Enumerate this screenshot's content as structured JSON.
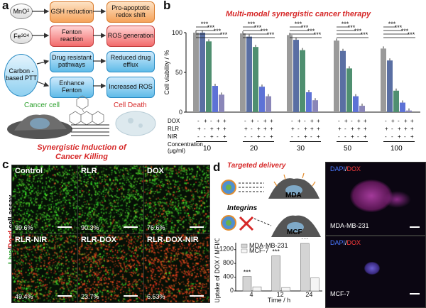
{
  "panel_a": {
    "letter": "a",
    "rows": [
      {
        "source": "MnO",
        "source_sub": "2",
        "mid": "GSH reduction",
        "right": "Pro-apoptotic redox shift"
      },
      {
        "source": "Fe",
        "source_sub": "3O4",
        "mid": "Fenton reaction",
        "right": "ROS generation"
      },
      {
        "source": "Carbon -based PTT",
        "source_sub": "",
        "mid": "Drug resistant pathways",
        "right": "Reduced drug efflux"
      },
      {
        "source": "",
        "source_sub": "",
        "mid": "Enhance Fenton",
        "right": "Increased ROS"
      }
    ],
    "cancer_cell": "Cancer cell",
    "cell_death": "Cell Death",
    "caption": "Synergistic Induction of Cancer Killing"
  },
  "panel_b": {
    "letter": "b",
    "title": "Multi-modal synergistic cancer therapy",
    "row_labels": [
      "DOX",
      "RLR",
      "NIR"
    ],
    "signs": {
      "DOX": [
        "-",
        "+",
        "-",
        "+",
        "+"
      ],
      "RLR": [
        "+",
        "-",
        "+",
        "+",
        "+"
      ],
      "NIR": [
        "-",
        "-",
        "+",
        "-",
        "+"
      ]
    },
    "concentration_label": "Concentration (μg/ml)",
    "sig": "***"
  },
  "chart_data": {
    "type": "bar",
    "title": "Multi-modal synergistic cancer therapy",
    "ylabel": "Cell viability / %",
    "ylim": [
      0,
      100
    ],
    "yticks": [
      "0",
      "50",
      "100"
    ],
    "categories": [
      "10",
      "20",
      "30",
      "50",
      "100"
    ],
    "series": [
      {
        "color": "#9a9a9a",
        "values": [
          100,
          99,
          97,
          90,
          80
        ]
      },
      {
        "color": "#5a6fa3",
        "values": [
          100,
          95,
          91,
          77,
          65
        ]
      },
      {
        "color": "#4f8f70",
        "values": [
          89,
          82,
          78,
          55,
          27
        ]
      },
      {
        "color": "#5d72d6",
        "values": [
          33,
          32,
          25,
          20,
          12
        ]
      },
      {
        "color": "#8a86b8",
        "values": [
          22,
          20,
          15,
          8,
          2
        ]
      }
    ]
  },
  "panel_c": {
    "letter": "c",
    "side_label_live": "Live",
    "side_label_dead": "Dead",
    "side_label_rest": " cell assay",
    "tiles": [
      {
        "name": "Control",
        "pct": "99.6%",
        "dead": 0.03
      },
      {
        "name": "RLR",
        "pct": "90.3%",
        "dead": 0.08
      },
      {
        "name": "DOX",
        "pct": "76.6%",
        "dead": 0.2
      },
      {
        "name": "RLR-NIR",
        "pct": "49.4%",
        "dead": 0.45
      },
      {
        "name": "RLR-DOX",
        "pct": "23.7%",
        "dead": 0.7
      },
      {
        "name": "RLR-DOX-NIR",
        "pct": "6.63%",
        "dead": 0.9
      }
    ]
  },
  "panel_d": {
    "letter": "d",
    "targeted": "Targeted delivery",
    "integrins": "Integrins",
    "mda": "MDA",
    "mcf": "MCF",
    "img_label_dapi": "DAPI",
    "img_label_sep": "/",
    "img_label_dox": "DOX",
    "img1_caption": "MDA-MB-231",
    "img2_caption": "MCF-7",
    "uptake": {
      "ylabel": "Uptake of DOX / MFI/Cell",
      "xlabel": "Time / h",
      "x": [
        "4",
        "12",
        "24"
      ],
      "ymax": 1400,
      "yticks": [
        "0",
        "400",
        "800",
        "1200"
      ],
      "series": [
        {
          "name": "MDA-MB-231",
          "color": "#d4d4d4",
          "values": [
            420,
            1020,
            1380
          ]
        },
        {
          "name": "MCF-7",
          "color": "#f5f5f5",
          "values": [
            120,
            100,
            380
          ]
        }
      ],
      "sig_labels": [
        "***",
        "***",
        "***",
        "***",
        "***"
      ]
    }
  }
}
